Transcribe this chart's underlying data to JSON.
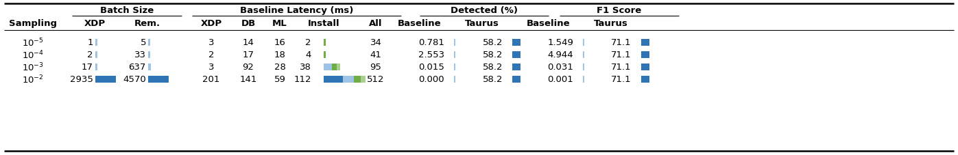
{
  "rows": [
    {
      "sampling": "$10^{-5}$",
      "xdp_batch": 1,
      "rem_batch": 5,
      "xdp_lat": 3,
      "db_lat": 14,
      "ml_lat": 16,
      "install_lat": 2,
      "all_lat": 34,
      "det_base": "0.781",
      "det_taurus": "58.2",
      "f1_base": "1.549",
      "f1_taurus": "71.1"
    },
    {
      "sampling": "$10^{-4}$",
      "xdp_batch": 2,
      "rem_batch": 33,
      "xdp_lat": 2,
      "db_lat": 17,
      "ml_lat": 18,
      "install_lat": 4,
      "all_lat": 41,
      "det_base": "2.553",
      "det_taurus": "58.2",
      "f1_base": "4.944",
      "f1_taurus": "71.1"
    },
    {
      "sampling": "$10^{-3}$",
      "xdp_batch": 17,
      "rem_batch": 637,
      "xdp_lat": 3,
      "db_lat": 92,
      "ml_lat": 28,
      "install_lat": 38,
      "all_lat": 95,
      "det_base": "0.015",
      "det_taurus": "58.2",
      "f1_base": "0.031",
      "f1_taurus": "71.1"
    },
    {
      "sampling": "$10^{-2}$",
      "xdp_batch": 2935,
      "rem_batch": 4570,
      "xdp_lat": 201,
      "db_lat": 141,
      "ml_lat": 59,
      "install_lat": 112,
      "all_lat": 512,
      "det_base": "0.000",
      "det_taurus": "58.2",
      "f1_base": "0.001",
      "f1_taurus": "71.1"
    }
  ],
  "color_light_blue": "#9DC3E6",
  "color_mid_blue": "#5BA3D0",
  "color_dark_blue": "#2E75B6",
  "color_green": "#70AD47",
  "color_light_green": "#A9D18E",
  "color_bg": "#FFFFFF",
  "color_text": "#000000",
  "batch_bar_colors": [
    "#9DC3E6",
    "#9DC3E6",
    "#9DC3E6",
    "#2E75B6"
  ],
  "install_bars": [
    [
      [
        "#70AD47",
        3
      ]
    ],
    [
      [
        "#70AD47",
        3
      ]
    ],
    [
      [
        "#9DC3E6",
        12
      ],
      [
        "#70AD47",
        7
      ],
      [
        "#A9D18E",
        5
      ]
    ],
    [
      [
        "#2E75B6",
        28
      ],
      [
        "#9DC3E6",
        16
      ],
      [
        "#70AD47",
        10
      ],
      [
        "#A9D18E",
        7
      ]
    ]
  ],
  "figw": 13.97,
  "figh": 2.28,
  "dpi": 100
}
